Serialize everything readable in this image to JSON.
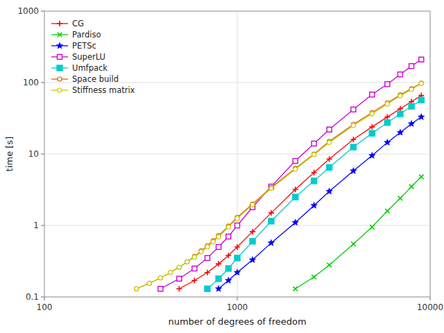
{
  "chart_data": {
    "type": "line",
    "xlabel": "number of degrees of freedom",
    "ylabel": "time [s]",
    "log": true,
    "grid": true,
    "legend": "upper-left",
    "xlim": [
      100,
      10000
    ],
    "ylim": [
      0.1,
      1000
    ],
    "xticks": [
      100,
      1000,
      10000
    ],
    "yticks": [
      0.1,
      1,
      10,
      100,
      1000
    ],
    "series": [
      {
        "name": "CG",
        "color": "#ff0000",
        "marker": "plus",
        "x": [
          500,
          600,
          700,
          800,
          900,
          1000,
          1200,
          1500,
          2000,
          2500,
          3000,
          4000,
          5000,
          6000,
          7000,
          8000,
          9000
        ],
        "values": [
          0.13,
          0.17,
          0.22,
          0.29,
          0.38,
          0.5,
          0.82,
          1.5,
          3.2,
          5.5,
          8.5,
          16.0,
          24.0,
          33.0,
          43.0,
          54.0,
          66.0
        ]
      },
      {
        "name": "Pardiso",
        "color": "#00cc00",
        "marker": "cross",
        "x": [
          2000,
          2500,
          3000,
          4000,
          5000,
          6000,
          7000,
          8000,
          9000
        ],
        "values": [
          0.13,
          0.19,
          0.28,
          0.55,
          0.95,
          1.6,
          2.4,
          3.5,
          4.8
        ]
      },
      {
        "name": "PETSc",
        "color": "#0000ff",
        "marker": "star",
        "x": [
          800,
          900,
          1000,
          1200,
          1500,
          2000,
          2500,
          3000,
          4000,
          5000,
          6000,
          7000,
          8000,
          9000
        ],
        "values": [
          0.13,
          0.17,
          0.22,
          0.33,
          0.57,
          1.1,
          1.9,
          3.0,
          5.8,
          9.5,
          14.5,
          20.0,
          26.5,
          33.0
        ]
      },
      {
        "name": "SuperLU",
        "color": "#cc00cc",
        "marker": "square-open",
        "x": [
          400,
          500,
          600,
          700,
          800,
          900,
          1000,
          1200,
          1500,
          2000,
          2500,
          3000,
          4000,
          5000,
          6000,
          7000,
          8000,
          9000
        ],
        "values": [
          0.13,
          0.18,
          0.25,
          0.35,
          0.5,
          0.7,
          1.0,
          1.8,
          3.5,
          8.0,
          14.0,
          22.0,
          42.0,
          68.0,
          95.0,
          130.0,
          170.0,
          210.0
        ]
      },
      {
        "name": "Umfpack",
        "color": "#00cccc",
        "marker": "square",
        "x": [
          700,
          800,
          900,
          1000,
          1200,
          1500,
          2000,
          2500,
          3000,
          4000,
          5000,
          6000,
          7000,
          8000,
          9000
        ],
        "values": [
          0.13,
          0.18,
          0.25,
          0.35,
          0.6,
          1.15,
          2.5,
          4.2,
          6.5,
          12.5,
          19.5,
          27.5,
          36.5,
          46.5,
          57.0
        ]
      },
      {
        "name": "Space build",
        "color": "#cc6600",
        "marker": "circle-open",
        "x": [
          300,
          350,
          400,
          450,
          500,
          550,
          600,
          650,
          700,
          750,
          800,
          900,
          1000,
          1200,
          1500,
          2000,
          2500,
          3000,
          4000,
          5000,
          6000,
          7000,
          8000,
          9000
        ],
        "values": [
          0.13,
          0.155,
          0.185,
          0.22,
          0.26,
          0.31,
          0.37,
          0.44,
          0.52,
          0.61,
          0.72,
          0.98,
          1.3,
          2.0,
          3.4,
          6.3,
          10.0,
          15.0,
          26.0,
          38.0,
          52.0,
          67.0,
          82.0,
          98.0
        ]
      },
      {
        "name": "Stiffness matrix",
        "color": "#cccc00",
        "marker": "circle-open",
        "x": [
          300,
          350,
          400,
          450,
          500,
          550,
          600,
          650,
          700,
          750,
          800,
          900,
          1000,
          1200,
          1500,
          2000,
          2500,
          3000,
          4000,
          5000,
          6000,
          7000,
          8000,
          9000
        ],
        "values": [
          0.13,
          0.155,
          0.185,
          0.22,
          0.26,
          0.31,
          0.36,
          0.43,
          0.5,
          0.59,
          0.69,
          0.95,
          1.25,
          1.95,
          3.3,
          6.1,
          9.8,
          14.5,
          25.0,
          36.5,
          50.0,
          65.0,
          80.0,
          97.0
        ]
      }
    ]
  }
}
